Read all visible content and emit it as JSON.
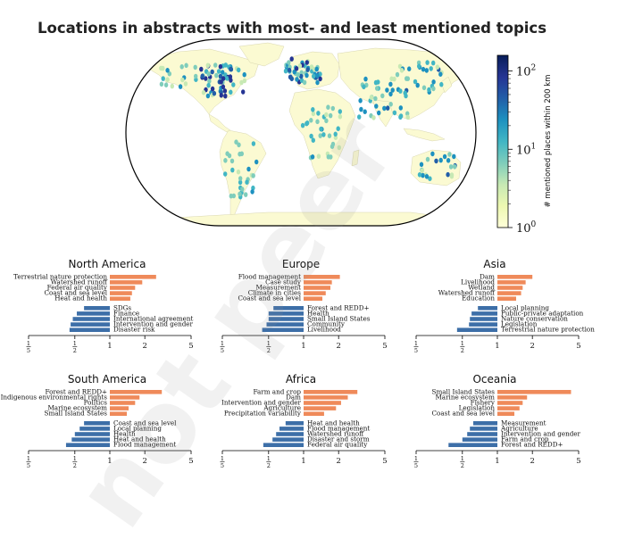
{
  "title": "Locations in abstracts with most- and least mentioned topics",
  "watermark": "not peer",
  "colors": {
    "top": "#ef8a5a",
    "bottom": "#3d6fa8",
    "ocean": "#ffffff",
    "land": "#fbfad2"
  },
  "colorbar": {
    "label": "# mentioned places within 200 km",
    "ticks": [
      {
        "base": "10",
        "exp": "2"
      },
      {
        "base": "10",
        "exp": "1"
      },
      {
        "base": "10",
        "exp": "0"
      }
    ],
    "stops": [
      "#ffffd9",
      "#edf8b1",
      "#c7e9b4",
      "#7fcdbb",
      "#41b6c4",
      "#1d91c0",
      "#225ea8",
      "#253494",
      "#081d58"
    ]
  },
  "chart_data": [
    {
      "type": "bar",
      "title": "North America",
      "scale": "log",
      "xlim": [
        0.2,
        5
      ],
      "xticks": [
        {
          "label": "1/5",
          "value": 0.2
        },
        {
          "label": "1/2",
          "value": 0.5
        },
        {
          "label": "1",
          "value": 1
        },
        {
          "label": "2",
          "value": 2
        },
        {
          "label": "5",
          "value": 5
        }
      ],
      "top": [
        {
          "label": "Terrestrial nature protection",
          "value": 2.5
        },
        {
          "label": "Watershed runoff",
          "value": 1.9
        },
        {
          "label": "Federal air quality",
          "value": 1.65
        },
        {
          "label": "Coast and sea level",
          "value": 1.55
        },
        {
          "label": "Heat and health",
          "value": 1.5
        }
      ],
      "bottom": [
        {
          "label": "SDGs",
          "value": 0.6
        },
        {
          "label": "Finance",
          "value": 0.52
        },
        {
          "label": "International agreement",
          "value": 0.48
        },
        {
          "label": "Intervention and gender",
          "value": 0.46
        },
        {
          "label": "Disaster risk",
          "value": 0.45
        }
      ]
    },
    {
      "type": "bar",
      "title": "Europe",
      "scale": "log",
      "xlim": [
        0.2,
        5
      ],
      "xticks": [
        {
          "label": "1/5",
          "value": 0.2
        },
        {
          "label": "1/2",
          "value": 0.5
        },
        {
          "label": "1",
          "value": 1
        },
        {
          "label": "2",
          "value": 2
        },
        {
          "label": "5",
          "value": 5
        }
      ],
      "top": [
        {
          "label": "Flood management",
          "value": 2.05
        },
        {
          "label": "Case study",
          "value": 1.75
        },
        {
          "label": "Measurement",
          "value": 1.7
        },
        {
          "label": "Climate in cities",
          "value": 1.55
        },
        {
          "label": "Coast and sea level",
          "value": 1.45
        }
      ],
      "bottom": [
        {
          "label": "Forest and REDD+",
          "value": 0.55
        },
        {
          "label": "Health",
          "value": 0.5
        },
        {
          "label": "Small Island States",
          "value": 0.5
        },
        {
          "label": "Community",
          "value": 0.48
        },
        {
          "label": "Livelihood",
          "value": 0.44
        }
      ]
    },
    {
      "type": "bar",
      "title": "Asia",
      "scale": "log",
      "xlim": [
        0.2,
        5
      ],
      "xticks": [
        {
          "label": "1/5",
          "value": 0.2
        },
        {
          "label": "1/2",
          "value": 0.5
        },
        {
          "label": "1",
          "value": 1
        },
        {
          "label": "2",
          "value": 2
        },
        {
          "label": "5",
          "value": 5
        }
      ],
      "top": [
        {
          "label": "Dam",
          "value": 2.0
        },
        {
          "label": "Livelihood",
          "value": 1.75
        },
        {
          "label": "Wetland",
          "value": 1.65
        },
        {
          "label": "Watershed runoff",
          "value": 1.6
        },
        {
          "label": "Education",
          "value": 1.45
        }
      ],
      "bottom": [
        {
          "label": "Local planning",
          "value": 0.68
        },
        {
          "label": "Public-private adaptation",
          "value": 0.6
        },
        {
          "label": "Nature conservation",
          "value": 0.58
        },
        {
          "label": "Legislation",
          "value": 0.57
        },
        {
          "label": "Terrestrial nature protection",
          "value": 0.45
        }
      ]
    },
    {
      "type": "bar",
      "title": "South America",
      "scale": "log",
      "xlim": [
        0.2,
        5
      ],
      "xticks": [
        {
          "label": "1/5",
          "value": 0.2
        },
        {
          "label": "1/2",
          "value": 0.5
        },
        {
          "label": "1",
          "value": 1
        },
        {
          "label": "2",
          "value": 2
        },
        {
          "label": "5",
          "value": 5
        }
      ],
      "top": [
        {
          "label": "Forest and REDD+",
          "value": 2.8
        },
        {
          "label": "Indigenous environmental rights",
          "value": 1.8
        },
        {
          "label": "Politics",
          "value": 1.65
        },
        {
          "label": "Marine ecosystem",
          "value": 1.45
        },
        {
          "label": "Small Island States",
          "value": 1.4
        }
      ],
      "bottom": [
        {
          "label": "Coast and sea level",
          "value": 0.6
        },
        {
          "label": "Local planning",
          "value": 0.55
        },
        {
          "label": "Health",
          "value": 0.5
        },
        {
          "label": "Heat and health",
          "value": 0.47
        },
        {
          "label": "Flood management",
          "value": 0.42
        }
      ]
    },
    {
      "type": "bar",
      "title": "Africa",
      "scale": "log",
      "xlim": [
        0.2,
        5
      ],
      "xticks": [
        {
          "label": "1/5",
          "value": 0.2
        },
        {
          "label": "1/2",
          "value": 0.5
        },
        {
          "label": "1",
          "value": 1
        },
        {
          "label": "2",
          "value": 2
        },
        {
          "label": "5",
          "value": 5
        }
      ],
      "top": [
        {
          "label": "Farm and crop",
          "value": 2.9
        },
        {
          "label": "Dam",
          "value": 2.4
        },
        {
          "label": "Intervention and gender",
          "value": 2.1
        },
        {
          "label": "Agriculture",
          "value": 1.9
        },
        {
          "label": "Precipitation variability",
          "value": 1.5
        }
      ],
      "bottom": [
        {
          "label": "Heat and health",
          "value": 0.7
        },
        {
          "label": "Flood management",
          "value": 0.62
        },
        {
          "label": "Watershed runoff",
          "value": 0.58
        },
        {
          "label": "Disaster and storm",
          "value": 0.54
        },
        {
          "label": "Federal air quality",
          "value": 0.45
        }
      ]
    },
    {
      "type": "bar",
      "title": "Oceania",
      "scale": "log",
      "xlim": [
        0.2,
        5
      ],
      "xticks": [
        {
          "label": "1/5",
          "value": 0.2
        },
        {
          "label": "1/2",
          "value": 0.5
        },
        {
          "label": "1",
          "value": 1
        },
        {
          "label": "2",
          "value": 2
        },
        {
          "label": "5",
          "value": 5
        }
      ],
      "top": [
        {
          "label": "Small Island States",
          "value": 4.3
        },
        {
          "label": "Marine ecosystem",
          "value": 1.8
        },
        {
          "label": "Fishery",
          "value": 1.65
        },
        {
          "label": "Legislation",
          "value": 1.55
        },
        {
          "label": "Coast and sea level",
          "value": 1.4
        }
      ],
      "bottom": [
        {
          "label": "Measurement",
          "value": 0.62
        },
        {
          "label": "Agriculture",
          "value": 0.58
        },
        {
          "label": "Intervention and gender",
          "value": 0.55
        },
        {
          "label": "Farm and crop",
          "value": 0.5
        },
        {
          "label": "Forest and REDD+",
          "value": 0.38
        }
      ]
    }
  ]
}
